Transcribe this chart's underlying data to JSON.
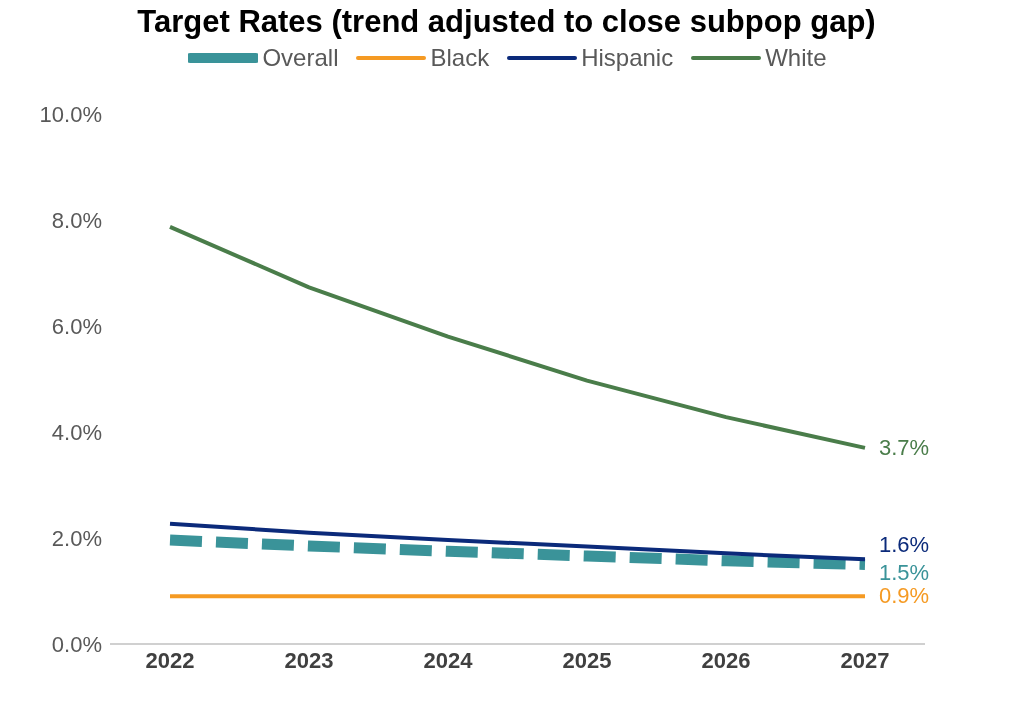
{
  "chart_data": {
    "type": "line",
    "title": "Target Rates (trend adjusted to close subpop gap)",
    "categories": [
      "2022",
      "2023",
      "2024",
      "2025",
      "2026",
      "2027"
    ],
    "series": [
      {
        "name": "Overall",
        "color": "#3a9399",
        "line_style": "dashed",
        "values": [
          1.96,
          1.85,
          1.75,
          1.66,
          1.57,
          1.5
        ],
        "value_labels": [
          null,
          null,
          null,
          null,
          null,
          "1.5%"
        ]
      },
      {
        "name": "Black",
        "color": "#f59a23",
        "line_style": "solid",
        "values": [
          0.9,
          0.9,
          0.9,
          0.9,
          0.9,
          0.9
        ],
        "value_labels": [
          null,
          null,
          null,
          null,
          null,
          "0.9%"
        ]
      },
      {
        "name": "Hispanic",
        "color": "#0b2a7a",
        "line_style": "solid",
        "values": [
          2.27,
          2.1,
          1.96,
          1.84,
          1.71,
          1.6
        ],
        "value_labels": [
          null,
          null,
          null,
          null,
          null,
          "1.6%"
        ]
      },
      {
        "name": "White",
        "color": "#4a7d4a",
        "line_style": "solid",
        "values": [
          7.87,
          6.73,
          5.8,
          4.97,
          4.28,
          3.7
        ],
        "value_labels": [
          null,
          null,
          null,
          null,
          null,
          "3.7%"
        ]
      }
    ],
    "ylim": [
      0,
      10
    ],
    "yticks": [
      {
        "value": 0,
        "label": "0.0%"
      },
      {
        "value": 2,
        "label": "2.0%"
      },
      {
        "value": 4,
        "label": "4.0%"
      },
      {
        "value": 6,
        "label": "6.0%"
      },
      {
        "value": 8,
        "label": "8.0%"
      },
      {
        "value": 10,
        "label": "10.0%"
      }
    ],
    "legend": "top",
    "marker": "none",
    "grid": false
  }
}
